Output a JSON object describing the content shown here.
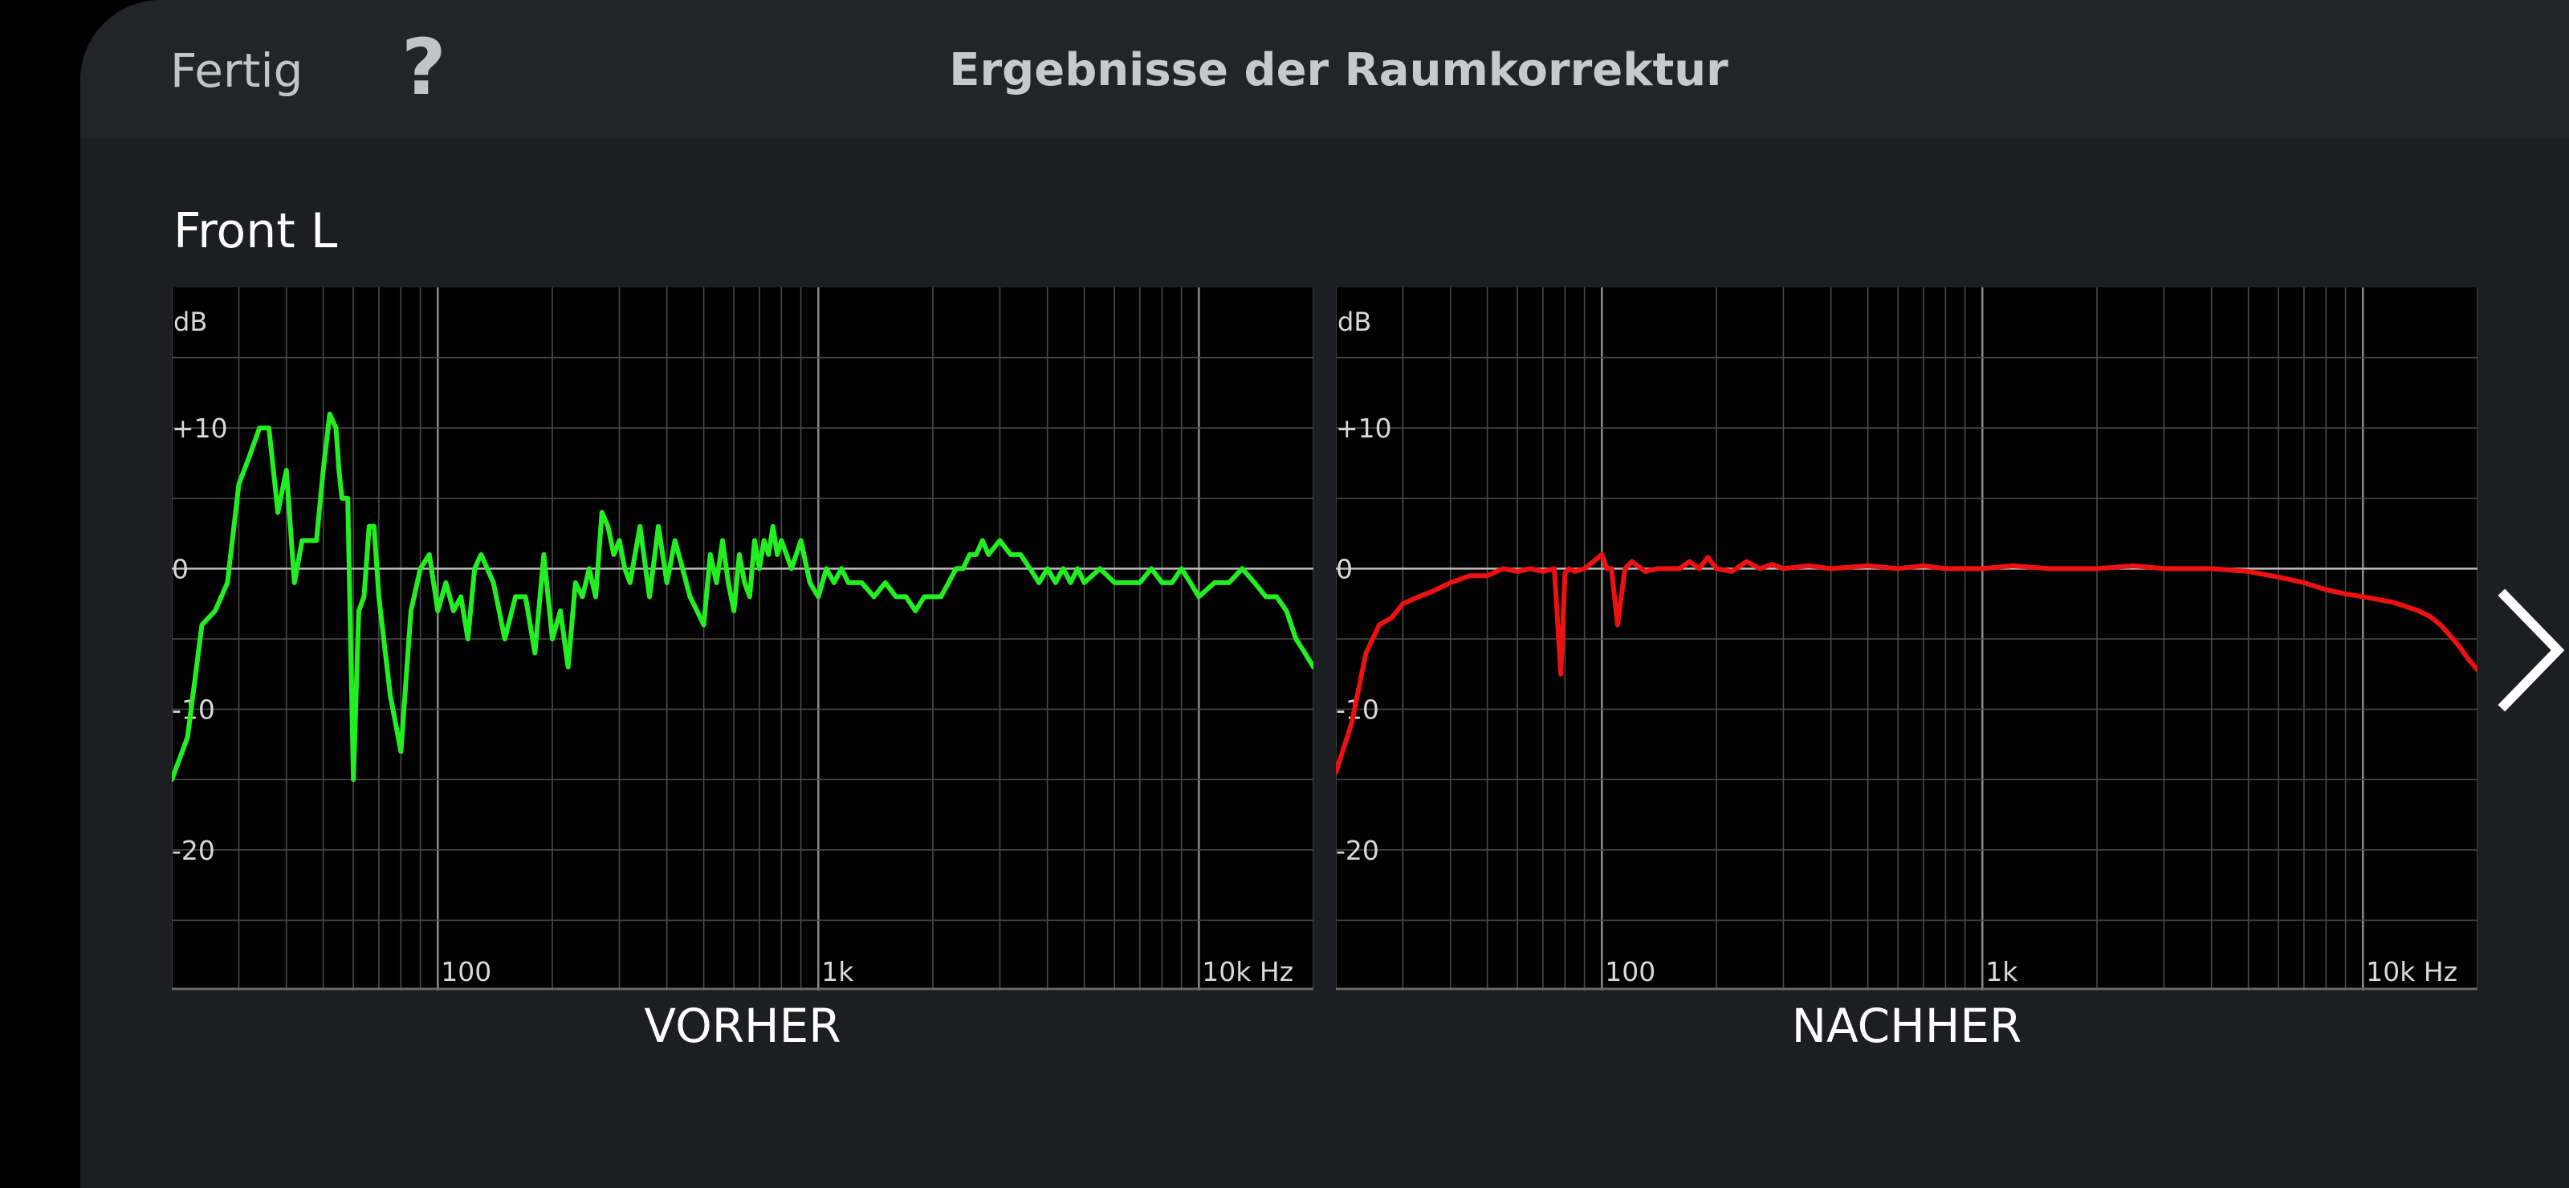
{
  "header": {
    "done_label": "Fertig",
    "help_label": "?",
    "title": "Ergebnisse der Raumkorrektur"
  },
  "channel": "Front L",
  "next_icon": "chevron-right-icon",
  "colors": {
    "before": "#22ee22",
    "after": "#ee1111",
    "grid": "#4a4a4a",
    "zero_line": "#bdbdbd"
  },
  "chart_data": [
    {
      "type": "line",
      "title": "VORHER",
      "ylabel": "dB",
      "y_ticks": [
        {
          "v": 10,
          "label": "+10"
        },
        {
          "v": 0,
          "label": "0"
        },
        {
          "v": -10,
          "label": "-10"
        },
        {
          "v": -20,
          "label": "-20"
        }
      ],
      "x_ticks": [
        {
          "v": 100,
          "label": "100"
        },
        {
          "v": 1000,
          "label": "1k"
        },
        {
          "v": 10000,
          "label": "10k Hz"
        }
      ],
      "xscale": "log",
      "xlim": [
        20,
        20000
      ],
      "ylim": [
        -30,
        20
      ],
      "series": [
        {
          "x": [
            20,
            22,
            24,
            26,
            28,
            30,
            32,
            34,
            35,
            36,
            38,
            40,
            42,
            44,
            46,
            48,
            50,
            52,
            54,
            55,
            56,
            58,
            60,
            62,
            64,
            66,
            68,
            70,
            75,
            80,
            85,
            90,
            95,
            100,
            105,
            110,
            115,
            120,
            125,
            130,
            140,
            150,
            160,
            170,
            180,
            190,
            200,
            210,
            220,
            230,
            240,
            250,
            260,
            270,
            280,
            290,
            300,
            310,
            320,
            340,
            360,
            380,
            400,
            420,
            440,
            460,
            480,
            500,
            520,
            540,
            560,
            580,
            600,
            620,
            640,
            660,
            680,
            700,
            720,
            740,
            760,
            780,
            800,
            850,
            900,
            950,
            1000,
            1050,
            1100,
            1150,
            1200,
            1300,
            1400,
            1500,
            1600,
            1700,
            1800,
            1900,
            2000,
            2100,
            2200,
            2300,
            2400,
            2500,
            2600,
            2700,
            2800,
            3000,
            3200,
            3400,
            3600,
            3800,
            4000,
            4200,
            4400,
            4600,
            4800,
            5000,
            5500,
            6000,
            6500,
            7000,
            7500,
            8000,
            8500,
            9000,
            9500,
            10000,
            11000,
            12000,
            13000,
            14000,
            15000,
            16000,
            17000,
            18000,
            19000,
            20000
          ],
          "y": [
            -15,
            -12,
            -4,
            -3,
            -1,
            6,
            8,
            10,
            10,
            10,
            4,
            7,
            -1,
            2,
            2,
            2,
            7,
            11,
            10,
            7,
            5,
            5,
            -15,
            -3,
            -2,
            3,
            3,
            -2,
            -9,
            -13,
            -3,
            0,
            1,
            -3,
            -1,
            -3,
            -2,
            -5,
            0,
            1,
            -1,
            -5,
            -2,
            -2,
            -6,
            1,
            -5,
            -3,
            -7,
            -1,
            -2,
            0,
            -2,
            4,
            3,
            1,
            2,
            0,
            -1,
            3,
            -2,
            3,
            -1,
            2,
            0,
            -2,
            -3,
            -4,
            1,
            -1,
            2,
            -1,
            -3,
            1,
            -1,
            -2,
            2,
            0,
            2,
            1,
            3,
            1,
            2,
            0,
            2,
            -1,
            -2,
            0,
            -1,
            0,
            -1,
            -1,
            -2,
            -1,
            -2,
            -2,
            -3,
            -2,
            -2,
            -2,
            -1,
            0,
            0,
            1,
            1,
            2,
            1,
            2,
            1,
            1,
            0,
            -1,
            0,
            -1,
            0,
            -1,
            0,
            -1,
            0,
            -1,
            -1,
            -1,
            0,
            -1,
            -1,
            0,
            -1,
            -2,
            -1,
            -1,
            0,
            -1,
            -2,
            -2,
            -3,
            -5,
            -6,
            -7
          ]
        }
      ]
    },
    {
      "type": "line",
      "title": "NACHHER",
      "ylabel": "dB",
      "y_ticks": [
        {
          "v": 10,
          "label": "+10"
        },
        {
          "v": 0,
          "label": "0"
        },
        {
          "v": -10,
          "label": "-10"
        },
        {
          "v": -20,
          "label": "-20"
        }
      ],
      "x_ticks": [
        {
          "v": 100,
          "label": "100"
        },
        {
          "v": 1000,
          "label": "1k"
        },
        {
          "v": 10000,
          "label": "10k Hz"
        }
      ],
      "xscale": "log",
      "xlim": [
        20,
        20000
      ],
      "ylim": [
        -30,
        20
      ],
      "series": [
        {
          "x": [
            20,
            22,
            24,
            26,
            28,
            30,
            33,
            36,
            40,
            45,
            50,
            55,
            60,
            65,
            70,
            75,
            78,
            80,
            82,
            85,
            90,
            95,
            100,
            103,
            106,
            110,
            115,
            120,
            130,
            140,
            150,
            160,
            170,
            180,
            190,
            200,
            220,
            240,
            260,
            280,
            300,
            350,
            400,
            500,
            600,
            700,
            800,
            1000,
            1200,
            1500,
            2000,
            2500,
            3000,
            3500,
            4000,
            5000,
            6000,
            7000,
            8000,
            9000,
            10000,
            11000,
            12000,
            13000,
            14000,
            15000,
            16000,
            17000,
            18000,
            19000,
            20000
          ],
          "y": [
            -14.5,
            -11,
            -6,
            -4,
            -3.5,
            -2.5,
            -2,
            -1.6,
            -1,
            -0.5,
            -0.5,
            0,
            -0.2,
            0,
            -0.2,
            0,
            -7.5,
            -0.3,
            0,
            -0.2,
            0,
            0.5,
            1,
            0,
            0,
            -4,
            0,
            0.5,
            -0.2,
            0,
            0,
            0,
            0.5,
            0,
            0.8,
            0,
            -0.2,
            0.5,
            0,
            0.3,
            0,
            0.2,
            0,
            0.2,
            0,
            0.2,
            0,
            0,
            0.2,
            0,
            0,
            0.2,
            0,
            0,
            0,
            -0.2,
            -0.6,
            -1,
            -1.5,
            -1.8,
            -2,
            -2.2,
            -2.4,
            -2.7,
            -3,
            -3.4,
            -4,
            -4.8,
            -5.6,
            -6.5,
            -7.2
          ]
        }
      ]
    }
  ]
}
